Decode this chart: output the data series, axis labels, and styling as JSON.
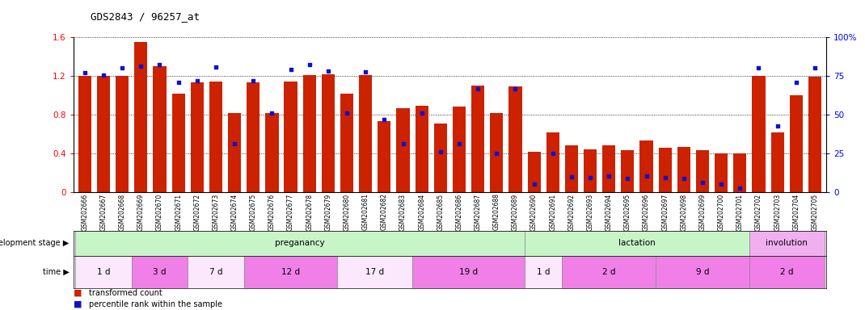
{
  "title": "GDS2843 / 96257_at",
  "samples": [
    "GSM202666",
    "GSM202667",
    "GSM202668",
    "GSM202669",
    "GSM202670",
    "GSM202671",
    "GSM202672",
    "GSM202673",
    "GSM202674",
    "GSM202675",
    "GSM202676",
    "GSM202677",
    "GSM202678",
    "GSM202679",
    "GSM202680",
    "GSM202681",
    "GSM202682",
    "GSM202683",
    "GSM202684",
    "GSM202685",
    "GSM202686",
    "GSM202687",
    "GSM202688",
    "GSM202689",
    "GSM202690",
    "GSM202691",
    "GSM202692",
    "GSM202693",
    "GSM202694",
    "GSM202695",
    "GSM202696",
    "GSM202697",
    "GSM202698",
    "GSM202699",
    "GSM202700",
    "GSM202701",
    "GSM202702",
    "GSM202703",
    "GSM202704",
    "GSM202705"
  ],
  "red_values": [
    1.2,
    1.2,
    1.2,
    1.55,
    1.3,
    1.02,
    1.13,
    1.14,
    0.82,
    1.13,
    0.82,
    1.14,
    1.21,
    1.22,
    1.02,
    1.21,
    0.73,
    0.87,
    0.89,
    0.71,
    0.88,
    1.1,
    0.82,
    1.09,
    0.42,
    0.62,
    0.48,
    0.44,
    0.48,
    0.43,
    0.53,
    0.46,
    0.47,
    0.43,
    0.4,
    0.4,
    1.2,
    0.62,
    1.0,
    1.19
  ],
  "blue_values": [
    1.23,
    1.21,
    1.28,
    1.3,
    1.32,
    1.13,
    1.15,
    1.29,
    0.5,
    1.15,
    0.82,
    1.27,
    1.32,
    1.25,
    0.82,
    1.24,
    0.75,
    0.5,
    0.82,
    0.42,
    0.5,
    1.07,
    0.4,
    1.07,
    0.08,
    0.4,
    0.16,
    0.15,
    0.17,
    0.14,
    0.17,
    0.15,
    0.14,
    0.1,
    0.08,
    0.04,
    1.28,
    0.68,
    1.13,
    1.28
  ],
  "development_stages": [
    {
      "label": "preganancy",
      "start": 0,
      "end": 23,
      "color": "#c8f5c8"
    },
    {
      "label": "lactation",
      "start": 24,
      "end": 35,
      "color": "#c8f5c8"
    },
    {
      "label": "involution",
      "start": 36,
      "end": 39,
      "color": "#f0b8f0"
    }
  ],
  "time_groups": [
    {
      "label": "1 d",
      "start": 0,
      "end": 2,
      "color": "#fce8fc"
    },
    {
      "label": "3 d",
      "start": 3,
      "end": 5,
      "color": "#f080e8"
    },
    {
      "label": "7 d",
      "start": 6,
      "end": 8,
      "color": "#fce8fc"
    },
    {
      "label": "12 d",
      "start": 9,
      "end": 13,
      "color": "#f080e8"
    },
    {
      "label": "17 d",
      "start": 14,
      "end": 17,
      "color": "#fce8fc"
    },
    {
      "label": "19 d",
      "start": 18,
      "end": 23,
      "color": "#f080e8"
    },
    {
      "label": "1 d",
      "start": 24,
      "end": 25,
      "color": "#fce8fc"
    },
    {
      "label": "2 d",
      "start": 26,
      "end": 30,
      "color": "#f080e8"
    },
    {
      "label": "9 d",
      "start": 31,
      "end": 35,
      "color": "#f080e8"
    },
    {
      "label": "2 d",
      "start": 36,
      "end": 39,
      "color": "#f080e8"
    }
  ],
  "ylim": [
    0,
    1.6
  ],
  "yticks_left": [
    0,
    0.4,
    0.8,
    1.2
  ],
  "ytick_top": 1.6,
  "right_ytick_vals": [
    0,
    0.4,
    0.8,
    1.2,
    1.6
  ],
  "right_ytick_labels": [
    "0",
    "25",
    "50",
    "75",
    "100%"
  ],
  "bar_color": "#cc2200",
  "dot_color": "#1111cc",
  "bg_color": "#ffffff",
  "legend_red": "transformed count",
  "legend_blue": "percentile rank within the sample"
}
